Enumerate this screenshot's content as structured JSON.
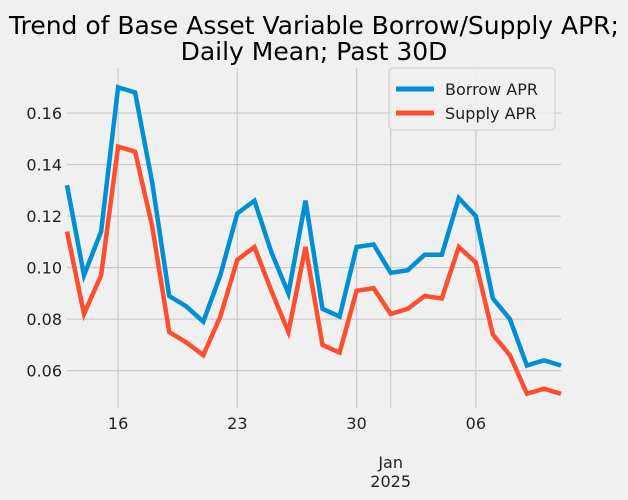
{
  "chart_data": {
    "type": "line",
    "title_lines": [
      "Trend of Base Asset Variable Borrow/Supply APR;",
      "Daily Mean; Past 30D"
    ],
    "xlabel": "",
    "ylabel": "",
    "x": [
      "2024-12-13",
      "2024-12-14",
      "2024-12-15",
      "2024-12-16",
      "2024-12-17",
      "2024-12-18",
      "2024-12-19",
      "2024-12-20",
      "2024-12-21",
      "2024-12-22",
      "2024-12-23",
      "2024-12-24",
      "2024-12-25",
      "2024-12-26",
      "2024-12-27",
      "2024-12-28",
      "2024-12-29",
      "2024-12-30",
      "2024-12-31",
      "2025-01-01",
      "2025-01-02",
      "2025-01-03",
      "2025-01-04",
      "2025-01-05",
      "2025-01-06",
      "2025-01-07",
      "2025-01-08",
      "2025-01-09",
      "2025-01-10",
      "2025-01-11"
    ],
    "xlim": [
      "2024-12-13",
      "2025-01-11"
    ],
    "ylim": [
      0.0455,
      0.1775
    ],
    "x_ticks": [
      {
        "date": "2024-12-16",
        "label": "16"
      },
      {
        "date": "2024-12-23",
        "label": "23"
      },
      {
        "date": "2024-12-30",
        "label": "30"
      },
      {
        "date": "2025-01-06",
        "label": "06"
      }
    ],
    "x_major_label": {
      "date": "2025-01-01",
      "month": "Jan",
      "year": "2025"
    },
    "y_ticks": [
      0.06,
      0.08,
      0.1,
      0.12,
      0.14,
      0.16
    ],
    "y_tick_labels": [
      "0.06",
      "0.08",
      "0.10",
      "0.12",
      "0.14",
      "0.16"
    ],
    "grid": true,
    "legend_position": "top-right",
    "series": [
      {
        "name": "Borrow APR",
        "color": "#008fd5",
        "values": [
          0.132,
          0.097,
          0.114,
          0.17,
          0.168,
          0.133,
          0.089,
          0.085,
          0.079,
          0.097,
          0.121,
          0.126,
          0.106,
          0.09,
          0.126,
          0.084,
          0.081,
          0.108,
          0.109,
          0.098,
          0.099,
          0.105,
          0.105,
          0.127,
          0.12,
          0.088,
          0.08,
          0.062,
          0.064,
          0.062
        ]
      },
      {
        "name": "Supply APR",
        "color": "#fc4f30",
        "values": [
          0.114,
          0.082,
          0.097,
          0.147,
          0.145,
          0.116,
          0.075,
          0.071,
          0.066,
          0.081,
          0.103,
          0.108,
          0.091,
          0.075,
          0.108,
          0.07,
          0.067,
          0.091,
          0.092,
          0.082,
          0.084,
          0.089,
          0.088,
          0.108,
          0.102,
          0.074,
          0.066,
          0.051,
          0.053,
          0.051
        ]
      }
    ]
  }
}
